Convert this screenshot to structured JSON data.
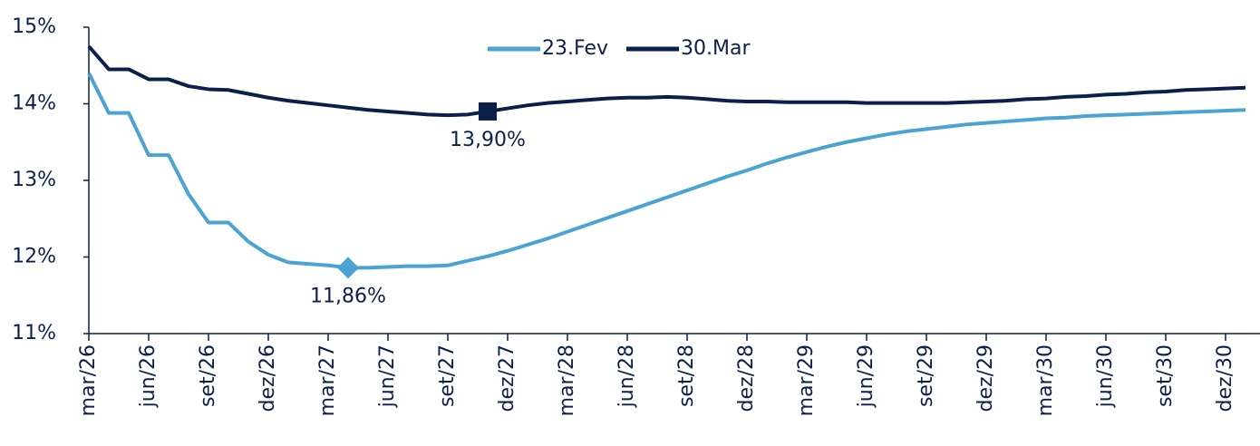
{
  "chart_data": {
    "type": "line",
    "categories": [
      "mar/26",
      null,
      null,
      "jun/26",
      null,
      null,
      "set/26",
      null,
      null,
      "dez/26",
      null,
      null,
      "mar/27",
      null,
      null,
      "jun/27",
      null,
      null,
      "set/27",
      null,
      null,
      "dez/27",
      null,
      null,
      "mar/28",
      null,
      null,
      "jun/28",
      null,
      null,
      "set/28",
      null,
      null,
      "dez/28",
      null,
      null,
      "mar/29",
      null,
      null,
      "jun/29",
      null,
      null,
      "set/29",
      null,
      null,
      "dez/29",
      null,
      null,
      "mar/30",
      null,
      null,
      "jun/30",
      null,
      null,
      "set/30",
      null,
      null,
      "dez/30",
      null
    ],
    "series": [
      {
        "name": "23.Fev",
        "color": "#4ba3d1",
        "marker": "diamond",
        "highlight": {
          "index": 13,
          "label": "11,86%"
        },
        "values": [
          14.4,
          13.88,
          13.88,
          13.33,
          13.33,
          12.82,
          12.45,
          12.45,
          12.2,
          12.03,
          11.93,
          11.91,
          11.89,
          11.86,
          11.86,
          11.87,
          11.88,
          11.88,
          11.89,
          11.95,
          12.01,
          12.08,
          12.16,
          12.24,
          12.33,
          12.42,
          12.51,
          12.6,
          12.69,
          12.78,
          12.87,
          12.96,
          13.05,
          13.13,
          13.22,
          13.3,
          13.37,
          13.44,
          13.5,
          13.55,
          13.6,
          13.64,
          13.67,
          13.7,
          13.73,
          13.75,
          13.77,
          13.79,
          13.81,
          13.82,
          13.84,
          13.85,
          13.86,
          13.87,
          13.88,
          13.89,
          13.9,
          13.91,
          13.92
        ]
      },
      {
        "name": "30.Mar",
        "color": "#0b1f4b",
        "marker": "square",
        "highlight": {
          "index": 20,
          "label": "13,90%"
        },
        "values": [
          14.75,
          14.45,
          14.45,
          14.32,
          14.32,
          14.23,
          14.19,
          14.18,
          14.13,
          14.08,
          14.04,
          14.01,
          13.98,
          13.95,
          13.92,
          13.9,
          13.88,
          13.86,
          13.85,
          13.86,
          13.9,
          13.94,
          13.98,
          14.01,
          14.03,
          14.05,
          14.07,
          14.08,
          14.08,
          14.09,
          14.08,
          14.06,
          14.04,
          14.03,
          14.03,
          14.02,
          14.02,
          14.02,
          14.02,
          14.01,
          14.01,
          14.01,
          14.01,
          14.01,
          14.02,
          14.03,
          14.04,
          14.06,
          14.07,
          14.09,
          14.1,
          14.12,
          14.13,
          14.15,
          14.16,
          14.18,
          14.19,
          14.2,
          14.21
        ]
      }
    ],
    "ylim": [
      11,
      15
    ],
    "yticks": [
      {
        "value": 11,
        "label": "11%"
      },
      {
        "value": 12,
        "label": "12%"
      },
      {
        "value": 13,
        "label": "13%"
      },
      {
        "value": 14,
        "label": "14%"
      },
      {
        "value": 15,
        "label": "15%"
      }
    ],
    "grid": false,
    "legend": "top"
  }
}
